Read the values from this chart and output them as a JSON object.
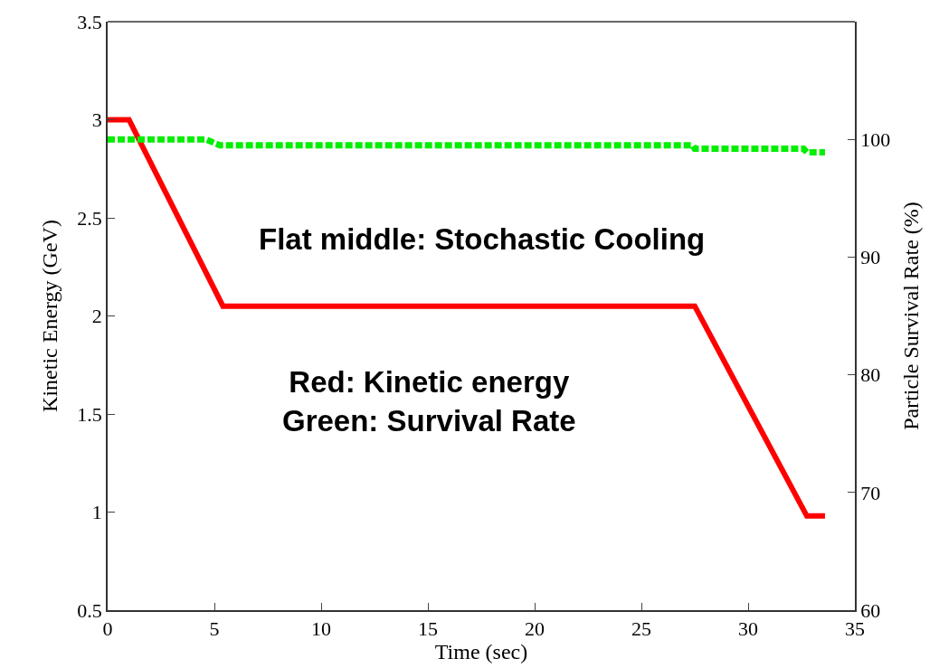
{
  "chart_data": {
    "type": "line",
    "xlabel": "Time (sec)",
    "ylabel": "Kinetic Energy (GeV)",
    "y2label": "Particle Survival Rate (%)",
    "xlim": [
      0,
      35
    ],
    "xticks": [
      0,
      5,
      10,
      15,
      20,
      25,
      30,
      35
    ],
    "ylim": [
      0.5,
      3.5
    ],
    "yticks": [
      0.5,
      1,
      1.5,
      2,
      2.5,
      3,
      3.5
    ],
    "y2lim": [
      60,
      110
    ],
    "y2ticks": [
      60,
      70,
      80,
      90,
      100
    ],
    "series": [
      {
        "color": "#ff0000",
        "line_style": "solid",
        "x": [
          0,
          1,
          5.4,
          27.5,
          32.75,
          33.6
        ],
        "values": [
          3,
          3,
          2.05,
          2.05,
          0.98,
          0.98
        ]
      },
      {
        "color": "#00ee00",
        "line_style": "dotted",
        "axis": "y2",
        "x": [
          0,
          4.6,
          5.25,
          27.4,
          27.5,
          32.6,
          32.75,
          33.6
        ],
        "values": [
          100,
          100,
          99.5,
          99.5,
          99.2,
          99.2,
          98.9,
          98.9
        ]
      }
    ],
    "annotations": [
      "Flat middle: Stochastic Cooling",
      "Red: Kinetic energy\nGreen: Survival Rate"
    ]
  }
}
